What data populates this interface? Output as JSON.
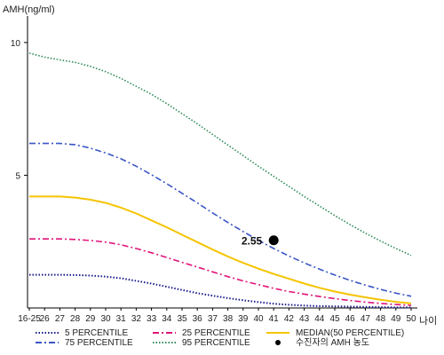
{
  "chart_data": {
    "type": "line",
    "ylabel": "AMH(ng/ml)",
    "xlabel": "나이",
    "ylim": [
      0,
      11
    ],
    "yticks": [
      5,
      10
    ],
    "categories": [
      "16-25",
      "26",
      "27",
      "28",
      "29",
      "30",
      "31",
      "32",
      "33",
      "34",
      "35",
      "36",
      "37",
      "38",
      "39",
      "40",
      "41",
      "42",
      "43",
      "44",
      "45",
      "46",
      "47",
      "48",
      "49",
      "50"
    ],
    "grid": false,
    "series": [
      {
        "name": "5 PERCENTILE",
        "color": "#1a1a8c",
        "style": "dotted",
        "width": 2,
        "values": [
          1.25,
          1.25,
          1.25,
          1.24,
          1.22,
          1.18,
          1.12,
          1.02,
          0.92,
          0.8,
          0.68,
          0.56,
          0.46,
          0.37,
          0.29,
          0.22,
          0.16,
          0.12,
          0.09,
          0.07,
          0.06,
          0.05,
          0.04,
          0.03,
          0.02,
          0.02
        ]
      },
      {
        "name": "25 PERCENTILE",
        "color": "#e0147a",
        "style": "dashdot",
        "width": 1.6,
        "values": [
          2.6,
          2.6,
          2.6,
          2.58,
          2.54,
          2.48,
          2.38,
          2.24,
          2.08,
          1.9,
          1.72,
          1.54,
          1.36,
          1.18,
          1.02,
          0.88,
          0.74,
          0.62,
          0.52,
          0.43,
          0.35,
          0.28,
          0.22,
          0.17,
          0.13,
          0.1
        ]
      },
      {
        "name": "MEDIAN(50 PERCENTILE)",
        "color": "#f5c400",
        "style": "solid",
        "width": 2,
        "values": [
          4.2,
          4.2,
          4.2,
          4.16,
          4.08,
          3.96,
          3.78,
          3.56,
          3.3,
          3.04,
          2.76,
          2.48,
          2.2,
          1.94,
          1.7,
          1.48,
          1.28,
          1.1,
          0.92,
          0.76,
          0.62,
          0.5,
          0.4,
          0.31,
          0.23,
          0.17
        ]
      },
      {
        "name": "75 PERCENTILE",
        "color": "#3a56c4",
        "style": "dashdot",
        "width": 1.6,
        "values": [
          6.2,
          6.2,
          6.2,
          6.15,
          6.02,
          5.84,
          5.62,
          5.34,
          5.02,
          4.68,
          4.32,
          3.96,
          3.58,
          3.22,
          2.88,
          2.55,
          2.24,
          1.96,
          1.7,
          1.46,
          1.24,
          1.04,
          0.86,
          0.7,
          0.56,
          0.44
        ]
      },
      {
        "name": "95 PERCENTILE",
        "color": "#2e8b57",
        "style": "dotted",
        "width": 1.6,
        "values": [
          9.6,
          9.45,
          9.35,
          9.25,
          9.1,
          8.9,
          8.65,
          8.35,
          8.05,
          7.7,
          7.32,
          6.94,
          6.54,
          6.14,
          5.74,
          5.34,
          4.96,
          4.58,
          4.2,
          3.84,
          3.48,
          3.14,
          2.82,
          2.52,
          2.24,
          1.98
        ]
      }
    ],
    "patient": {
      "name": "수진자의 AMH 농도",
      "x": "41",
      "y": 2.55,
      "label": "2.55",
      "color": "#000000"
    },
    "legend": [
      {
        "name": "5 PERCENTILE",
        "color": "#1a1a8c",
        "style": "dotted"
      },
      {
        "name": "25 PERCENTILE",
        "color": "#e0147a",
        "style": "dashdot"
      },
      {
        "name": "MEDIAN(50 PERCENTILE)",
        "color": "#f5c400",
        "style": "solid"
      },
      {
        "name": "75 PERCENTILE",
        "color": "#3a56c4",
        "style": "dashdot"
      },
      {
        "name": "95 PERCENTILE",
        "color": "#2e8b57",
        "style": "dotted"
      },
      {
        "name": "수진자의 AMH 농도",
        "color": "#000000",
        "style": "marker"
      }
    ],
    "legend_position": "bottom"
  }
}
